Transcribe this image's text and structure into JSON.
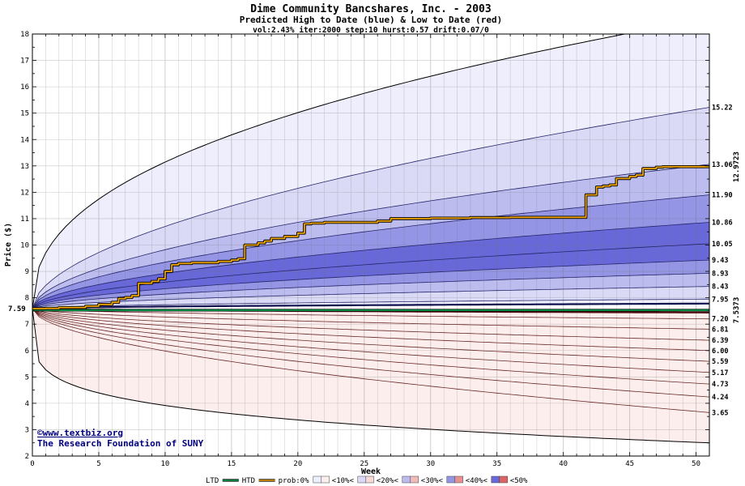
{
  "footer": {
    "copyright": "©www.textbiz.org",
    "institution": "The Research Foundation of SUNY"
  },
  "legend": {
    "ltd_label": "LTD",
    "htd_label": "HTD",
    "prob_label": "prob:0%",
    "bands": [
      {
        "label": "<10%<",
        "blue": "#eeeefc",
        "red": "#fdeeee"
      },
      {
        "label": "<20%<",
        "blue": "#dadaf6",
        "red": "#f8d8d8"
      },
      {
        "label": "<30%<",
        "blue": "#bcbcef",
        "red": "#f0baba"
      },
      {
        "label": "<40%<",
        "blue": "#9595e5",
        "red": "#e79292"
      },
      {
        "label": "<50%",
        "blue": "#6868d8",
        "red": "#dd6363"
      }
    ]
  },
  "chart_data": {
    "type": "area",
    "title": "Dime Community Bancshares, Inc. - 2003",
    "subtitle": "Predicted High to Date (blue) &  Low to Date (red)",
    "params": "vol:2.43% iter:2000 step:10 hurst:0.57 drift:0.07/0",
    "xlabel": "Week",
    "ylabel": "Price ($)",
    "xlim": [
      0,
      51
    ],
    "ylim": [
      2,
      18
    ],
    "grid": true,
    "legend_position": "bottom",
    "x_major_ticks": [
      0,
      5,
      10,
      15,
      20,
      25,
      30,
      35,
      40,
      45,
      50
    ],
    "y_major_ticks": [
      2,
      3,
      4,
      5,
      6,
      7,
      8,
      9,
      10,
      11,
      12,
      13,
      14,
      15,
      16,
      17,
      18
    ],
    "start_price": 7.59,
    "start_label": "7.59",
    "label_color": "#3a9a3a",
    "high_fan": {
      "outer_end": 18.6,
      "outer_exp": 0.42,
      "exp": 0.55,
      "percentile_ends": [
        15.22,
        13.06,
        11.9,
        10.86,
        10.05,
        9.43,
        8.93,
        8.43,
        7.95
      ],
      "inner_end": 7.78,
      "line_color": "#26266a",
      "inner_color": "#10104f"
    },
    "low_fan": {
      "outer_end": 2.5,
      "outer_exp": 0.2,
      "exp": 0.55,
      "percentile_ends": [
        7.2,
        6.81,
        6.39,
        6.0,
        5.59,
        5.17,
        4.73,
        4.24,
        3.65
      ],
      "inner_end": 7.44,
      "line_color": "#6a2626",
      "inner_color": "#4f1010"
    },
    "ltd_line": {
      "value": 7.53,
      "end_label": "7.5373",
      "color": "#00a550"
    },
    "htd_line": {
      "end_label": "12.9723",
      "color": "#efa400",
      "steps": [
        [
          0,
          7.59
        ],
        [
          1,
          7.6
        ],
        [
          2,
          7.63
        ],
        [
          4,
          7.68
        ],
        [
          5,
          7.75
        ],
        [
          6,
          7.83
        ],
        [
          6.5,
          7.97
        ],
        [
          7,
          8.01
        ],
        [
          7.5,
          8.08
        ],
        [
          8,
          8.55
        ],
        [
          9,
          8.62
        ],
        [
          9.5,
          8.72
        ],
        [
          10,
          9.0
        ],
        [
          10.5,
          9.25
        ],
        [
          11,
          9.3
        ],
        [
          12,
          9.33
        ],
        [
          14,
          9.38
        ],
        [
          15,
          9.43
        ],
        [
          15.5,
          9.48
        ],
        [
          16,
          10.0
        ],
        [
          17,
          10.08
        ],
        [
          17.5,
          10.15
        ],
        [
          18,
          10.25
        ],
        [
          19,
          10.33
        ],
        [
          20,
          10.45
        ],
        [
          20.5,
          10.8
        ],
        [
          21,
          10.83
        ],
        [
          22,
          10.86
        ],
        [
          26,
          10.91
        ],
        [
          27,
          11.0
        ],
        [
          30,
          11.02
        ],
        [
          33,
          11.04
        ],
        [
          36,
          11.05
        ],
        [
          41.5,
          11.05
        ],
        [
          41.7,
          11.9
        ],
        [
          42.5,
          12.2
        ],
        [
          43,
          12.24
        ],
        [
          43.5,
          12.28
        ],
        [
          44,
          12.52
        ],
        [
          45,
          12.6
        ],
        [
          45.5,
          12.65
        ],
        [
          46,
          12.9
        ],
        [
          47,
          12.95
        ],
        [
          47.5,
          12.97
        ],
        [
          51,
          12.97
        ]
      ]
    },
    "right_labels": [
      "15.22",
      "13.06",
      "11.90",
      "10.86",
      "10.05",
      "9.43",
      "8.93",
      "8.43",
      "7.95",
      "7.20",
      "6.81",
      "6.39",
      "6.00",
      "5.59",
      "5.17",
      "4.73",
      "4.24",
      "3.65"
    ]
  }
}
